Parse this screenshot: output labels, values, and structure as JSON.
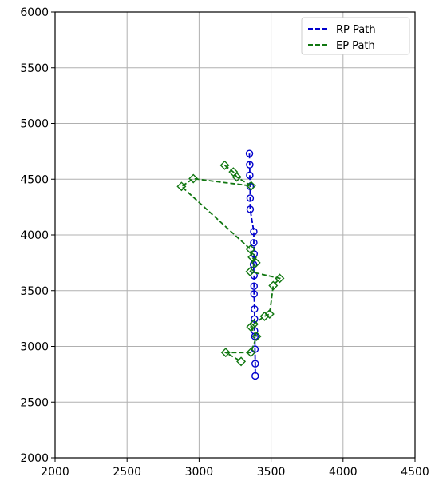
{
  "chart_data": {
    "type": "line",
    "title": "",
    "xlabel": "",
    "ylabel": "",
    "xlim": [
      2000,
      4500
    ],
    "ylim": [
      2000,
      6000
    ],
    "x_ticks": [
      2000,
      2500,
      3000,
      3500,
      4000,
      4500
    ],
    "y_ticks": [
      2000,
      2500,
      3000,
      3500,
      4000,
      4500,
      5000,
      5500,
      6000
    ],
    "grid": true,
    "legend_position": "top-right",
    "series": [
      {
        "name": "RP Path",
        "color": "#0000cc",
        "line_style": "dashed",
        "marker": "circle",
        "points": [
          [
            3350,
            4730
          ],
          [
            3352,
            4630
          ],
          [
            3352,
            4535
          ],
          [
            3355,
            4435
          ],
          [
            3355,
            4330
          ],
          [
            3355,
            4230
          ],
          [
            3380,
            4030
          ],
          [
            3380,
            3930
          ],
          [
            3382,
            3830
          ],
          [
            3378,
            3735
          ],
          [
            3382,
            3635
          ],
          [
            3382,
            3540
          ],
          [
            3382,
            3470
          ],
          [
            3385,
            3335
          ],
          [
            3385,
            3245
          ],
          [
            3385,
            3140
          ],
          [
            3388,
            3090
          ],
          [
            3388,
            2975
          ],
          [
            3390,
            2845
          ],
          [
            3390,
            2735
          ]
        ]
      },
      {
        "name": "EP Path",
        "color": "#117711",
        "line_style": "dashed",
        "marker": "diamond",
        "points": [
          [
            3178,
            4625
          ],
          [
            3238,
            4565
          ],
          [
            3262,
            4520
          ],
          [
            3362,
            4440
          ],
          [
            2960,
            4505
          ],
          [
            2878,
            4435
          ],
          [
            3358,
            3870
          ],
          [
            3370,
            3800
          ],
          [
            3395,
            3750
          ],
          [
            3355,
            3670
          ],
          [
            3560,
            3610
          ],
          [
            3515,
            3545
          ],
          [
            3490,
            3290
          ],
          [
            3455,
            3270
          ],
          [
            3380,
            3200
          ],
          [
            3360,
            3175
          ],
          [
            3400,
            3090
          ],
          [
            3360,
            2945
          ],
          [
            3185,
            2945
          ],
          [
            3292,
            2865
          ]
        ]
      }
    ]
  },
  "legend": {
    "items": [
      "RP Path",
      "EP Path"
    ]
  }
}
